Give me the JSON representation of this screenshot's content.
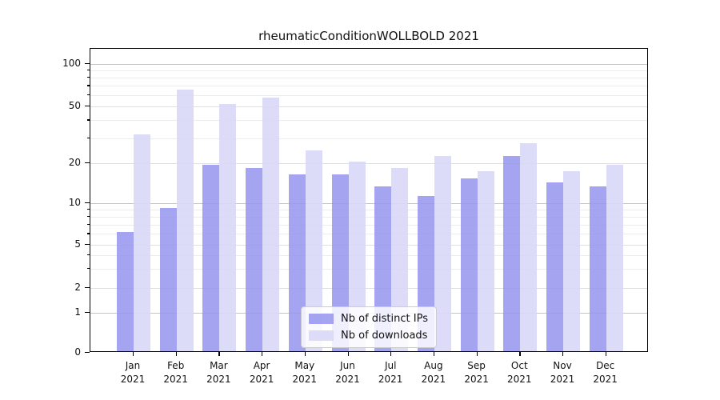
{
  "title": "rheumaticConditionWOLLBOLD 2021",
  "legend": {
    "items": [
      {
        "label": "Nb of distinct IPs",
        "color": "#9494ee"
      },
      {
        "label": "Nb of downloads",
        "color": "#d8d8f7"
      }
    ]
  },
  "chart_data": {
    "type": "bar",
    "title": "rheumaticConditionWOLLBOLD 2021",
    "categories": [
      "Jan 2021",
      "Feb 2021",
      "Mar 2021",
      "Apr 2021",
      "May 2021",
      "Jun 2021",
      "Jul 2021",
      "Aug 2021",
      "Sep 2021",
      "Oct 2021",
      "Nov 2021",
      "Dec 2021"
    ],
    "series": [
      {
        "name": "Nb of distinct IPs",
        "color": "#9494ee",
        "values": [
          6,
          9,
          19,
          18,
          16,
          16,
          13,
          11,
          15,
          22,
          14,
          13
        ]
      },
      {
        "name": "Nb of downloads",
        "color": "#d8d8f7",
        "values": [
          31,
          64,
          51,
          56,
          24,
          20,
          18,
          22,
          17,
          27,
          17,
          19
        ]
      }
    ],
    "xlabel": "",
    "ylabel": "",
    "yscale": "log-like",
    "yticks": [
      0,
      1,
      2,
      5,
      10,
      20,
      50,
      100
    ],
    "minor_yticks": [
      3,
      4,
      6,
      7,
      8,
      9,
      30,
      40,
      60,
      70,
      80,
      90
    ],
    "ylim": [
      0,
      128
    ],
    "grid": true,
    "legend_position": "lower center",
    "colors": {
      "decade_gridline": "#c5c5c5",
      "labeled_gridline": "#dfdfdf",
      "minor_gridline": "#ececec",
      "spine": "#000000"
    }
  }
}
